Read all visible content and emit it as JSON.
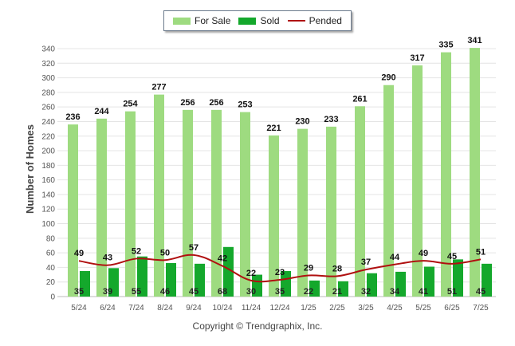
{
  "legend": {
    "for_sale": "For Sale",
    "sold": "Sold",
    "pended": "Pended"
  },
  "copyright": "Copyright © Trendgraphix, Inc.",
  "colors": {
    "for_sale": "#9edb80",
    "sold": "#14a82c",
    "pended": "#b01010",
    "grid": "#e4e4e4",
    "axis_text": "#555555"
  },
  "chart_data": {
    "type": "bar",
    "ylabel": "Number of Homes",
    "xlabel": "",
    "ylim": [
      0,
      340
    ],
    "yticks": [
      0,
      20,
      40,
      60,
      80,
      100,
      120,
      140,
      160,
      180,
      200,
      220,
      240,
      260,
      280,
      300,
      320,
      340
    ],
    "grid": true,
    "legend_position": "top-center",
    "categories": [
      "5/24",
      "6/24",
      "7/24",
      "8/24",
      "9/24",
      "10/24",
      "11/24",
      "12/24",
      "1/25",
      "2/25",
      "3/25",
      "4/25",
      "5/25",
      "6/25",
      "7/25"
    ],
    "series": [
      {
        "name": "For Sale",
        "type": "bar",
        "values": [
          236,
          244,
          254,
          277,
          256,
          256,
          253,
          221,
          230,
          233,
          261,
          290,
          317,
          335,
          341
        ]
      },
      {
        "name": "Sold",
        "type": "bar",
        "values": [
          35,
          39,
          55,
          46,
          45,
          68,
          30,
          35,
          22,
          21,
          32,
          34,
          41,
          51,
          45
        ]
      },
      {
        "name": "Pended",
        "type": "line",
        "values": [
          49,
          43,
          52,
          50,
          57,
          42,
          22,
          23,
          29,
          28,
          37,
          44,
          49,
          45,
          51
        ]
      }
    ]
  }
}
